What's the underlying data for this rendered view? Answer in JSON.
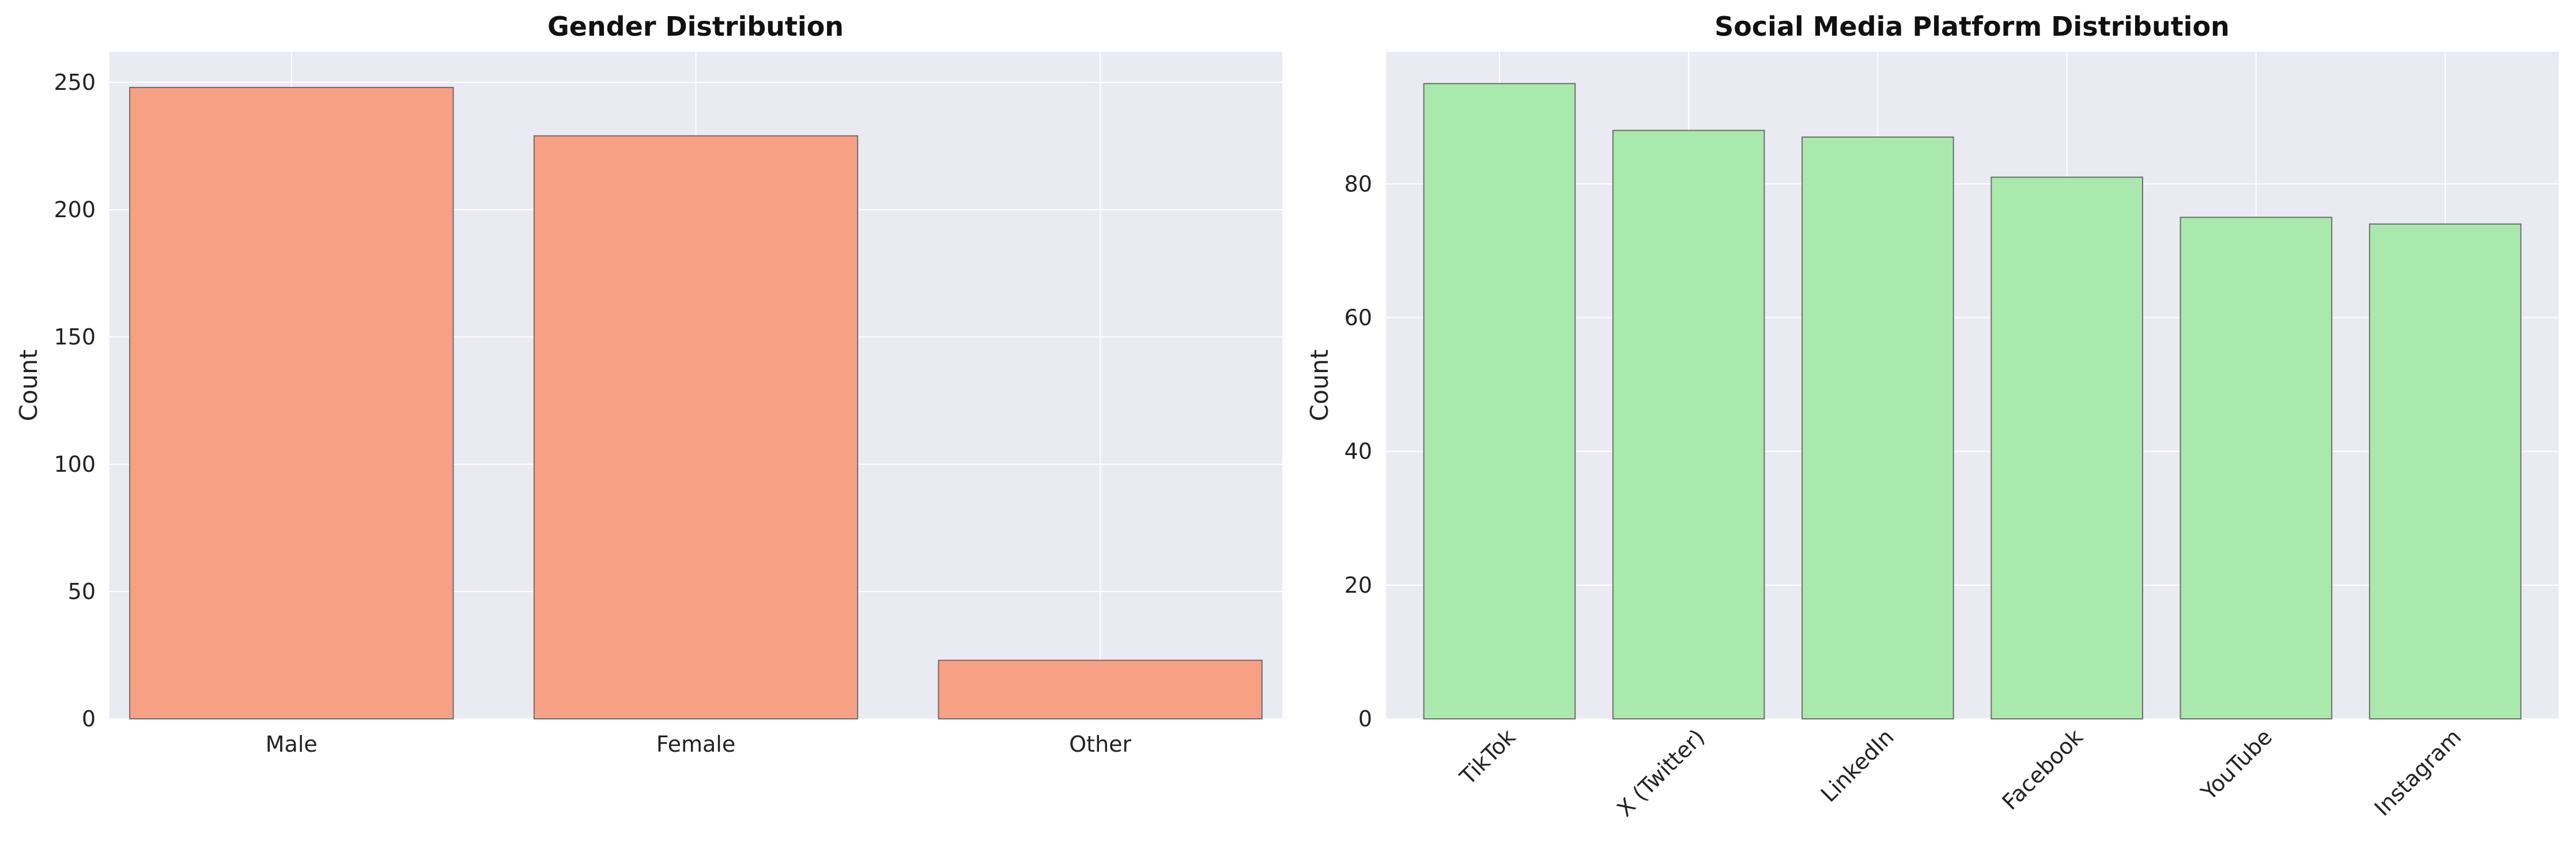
{
  "chart_data": [
    {
      "type": "bar",
      "title": "Gender Distribution",
      "xlabel": "",
      "ylabel": "Count",
      "categories": [
        "Male",
        "Female",
        "Other"
      ],
      "values": [
        248,
        229,
        23
      ],
      "ylim": [
        0,
        262
      ],
      "yticks": [
        0,
        50,
        100,
        150,
        200,
        250
      ],
      "bar_color": "#f7a083",
      "background_color": "#eaeaf2",
      "grid": true,
      "legend": "none"
    },
    {
      "type": "bar",
      "title": "Social Media Platform Distribution",
      "xlabel": "",
      "ylabel": "Count",
      "categories": [
        "TikTok",
        "X (Twitter)",
        "LinkedIn",
        "Facebook",
        "YouTube",
        "Instagram"
      ],
      "values": [
        95,
        88,
        87,
        81,
        75,
        74
      ],
      "ylim": [
        0,
        99.75
      ],
      "yticks": [
        0,
        20,
        40,
        60,
        80
      ],
      "x_tick_rotation": 45,
      "bar_color": "#a9e9ac",
      "background_color": "#eaeaf2",
      "grid": true,
      "legend": "none"
    }
  ]
}
